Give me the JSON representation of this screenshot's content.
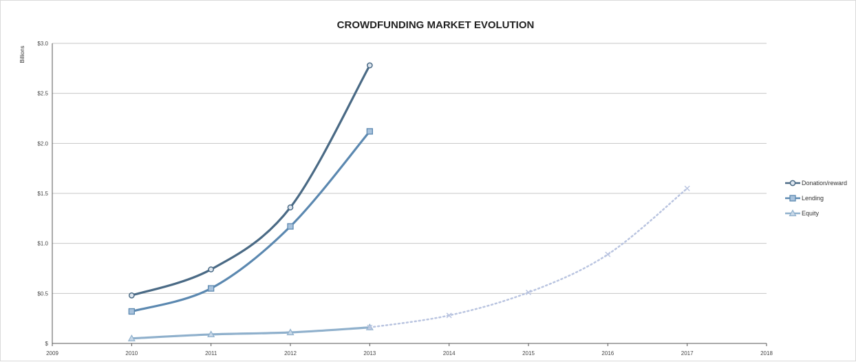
{
  "chart_data": {
    "type": "line",
    "title": "CROWDFUNDING MARKET EVOLUTION",
    "xlabel": "",
    "ylabel": "Billions",
    "x_ticks": [
      "2009",
      "2010",
      "2011",
      "2012",
      "2013",
      "2014",
      "2015",
      "2016",
      "2017",
      "2018"
    ],
    "y_ticks": [
      "$",
      "$0.5",
      "$1.0",
      "$1.5",
      "$2.0",
      "$2.5",
      "$3.0"
    ],
    "xlim": [
      2009,
      2018
    ],
    "ylim": [
      0,
      3.0
    ],
    "grid": true,
    "legend_position": "right",
    "series": [
      {
        "name": "Donation/reward",
        "color": "#4a6a85",
        "style": "solid",
        "marker": "circle",
        "points": [
          [
            2010,
            0.48
          ],
          [
            2011,
            0.74
          ],
          [
            2012,
            1.36
          ],
          [
            2013,
            2.78
          ]
        ]
      },
      {
        "name": "Lending",
        "color": "#5b88b0",
        "style": "solid",
        "marker": "square",
        "points": [
          [
            2010,
            0.32
          ],
          [
            2011,
            0.55
          ],
          [
            2012,
            1.17
          ],
          [
            2013,
            2.12
          ]
        ]
      },
      {
        "name": "Equity",
        "color": "#8fb0cc",
        "style": "solid",
        "marker": "triangle",
        "points": [
          [
            2010,
            0.05
          ],
          [
            2011,
            0.09
          ],
          [
            2012,
            0.11
          ],
          [
            2013,
            0.16
          ]
        ]
      },
      {
        "name": "",
        "color": "#b9c4e0",
        "style": "dotted",
        "marker": "x",
        "points": [
          [
            2013,
            0.16
          ],
          [
            2014,
            0.28
          ],
          [
            2015,
            0.51
          ],
          [
            2016,
            0.89
          ],
          [
            2017,
            1.55
          ]
        ]
      }
    ]
  }
}
